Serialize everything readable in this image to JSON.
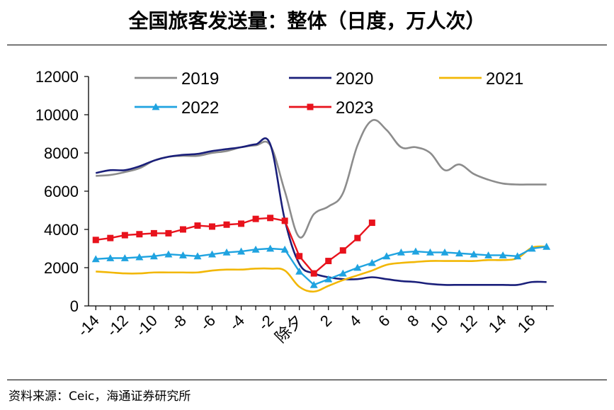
{
  "title": "全国旅客发送量：整体（日度，万人次）",
  "source": "资料来源：Ceic，海通证券研究所",
  "chart_data": {
    "type": "line",
    "xlabel": "",
    "ylabel": "",
    "ylim": [
      0,
      12000
    ],
    "yticks": [
      "0",
      "2000",
      "4000",
      "6000",
      "8000",
      "10000",
      "12000"
    ],
    "xticks": [
      "-14",
      "-12",
      "-10",
      "-8",
      "-6",
      "-4",
      "-2",
      "除夕",
      "2",
      "4",
      "6",
      "8",
      "10",
      "12",
      "14",
      "16"
    ],
    "grid": false,
    "legend_position": "top",
    "series": [
      {
        "name": "2019",
        "color": "#8c8c8c",
        "marker": "none",
        "x": [
          -14,
          -13,
          -12,
          -11,
          -10,
          -9,
          -8,
          -7,
          -6,
          -5,
          -4,
          -3,
          -2,
          -1,
          0,
          1,
          2,
          3,
          4,
          5,
          6,
          7,
          8,
          9,
          10,
          11,
          12,
          13,
          14,
          15,
          16,
          17
        ],
        "y": [
          6800,
          6850,
          7000,
          7200,
          7600,
          7800,
          7850,
          7850,
          8000,
          8100,
          8300,
          8400,
          8400,
          6000,
          3600,
          4800,
          5200,
          5900,
          8400,
          9700,
          9200,
          8300,
          8300,
          8000,
          7100,
          7400,
          6900,
          6600,
          6400,
          6350,
          6350,
          6350
        ]
      },
      {
        "name": "2020",
        "color": "#1a1f7a",
        "marker": "none",
        "x": [
          -14,
          -13,
          -12,
          -11,
          -10,
          -9,
          -8,
          -7,
          -6,
          -5,
          -4,
          -3,
          -2,
          -1,
          0,
          1,
          2,
          3,
          4,
          5,
          6,
          7,
          8,
          9,
          10,
          11,
          12,
          13,
          14,
          15,
          16,
          17
        ],
        "y": [
          6950,
          7100,
          7100,
          7300,
          7600,
          7800,
          7900,
          7950,
          8100,
          8200,
          8300,
          8450,
          8450,
          4500,
          2200,
          1700,
          1500,
          1400,
          1400,
          1500,
          1400,
          1300,
          1250,
          1150,
          1100,
          1100,
          1100,
          1100,
          1100,
          1100,
          1250,
          1250
        ]
      },
      {
        "name": "2021",
        "color": "#f2b705",
        "marker": "none",
        "x": [
          -14,
          -13,
          -12,
          -11,
          -10,
          -9,
          -8,
          -7,
          -6,
          -5,
          -4,
          -3,
          -2,
          -1,
          0,
          1,
          2,
          3,
          4,
          5,
          6,
          7,
          8,
          9,
          10,
          11,
          12,
          13,
          14,
          15,
          16,
          17
        ],
        "y": [
          1800,
          1750,
          1700,
          1700,
          1750,
          1750,
          1750,
          1750,
          1850,
          1900,
          1900,
          1950,
          1950,
          1850,
          1000,
          750,
          1050,
          1350,
          1600,
          1850,
          2150,
          2250,
          2300,
          2350,
          2350,
          2350,
          2350,
          2400,
          2400,
          2500,
          3050,
          3100
        ]
      },
      {
        "name": "2022",
        "color": "#1fa3e0",
        "marker": "triangle",
        "x": [
          -14,
          -13,
          -12,
          -11,
          -10,
          -9,
          -8,
          -7,
          -6,
          -5,
          -4,
          -3,
          -2,
          -1,
          0,
          1,
          2,
          3,
          4,
          5,
          6,
          7,
          8,
          9,
          10,
          11,
          12,
          13,
          14,
          15,
          16,
          17
        ],
        "y": [
          2450,
          2500,
          2500,
          2550,
          2600,
          2700,
          2650,
          2600,
          2700,
          2800,
          2850,
          2950,
          3000,
          2950,
          1800,
          1100,
          1400,
          1700,
          2000,
          2250,
          2600,
          2800,
          2850,
          2800,
          2800,
          2750,
          2700,
          2650,
          2650,
          2600,
          3000,
          3100
        ]
      },
      {
        "name": "2023",
        "color": "#e8121c",
        "marker": "square",
        "x": [
          -14,
          -13,
          -12,
          -11,
          -10,
          -9,
          -8,
          -7,
          -6,
          -5,
          -4,
          -3,
          -2,
          -1,
          0,
          1,
          2,
          3,
          4,
          5
        ],
        "y": [
          3450,
          3550,
          3700,
          3750,
          3800,
          3800,
          4000,
          4200,
          4150,
          4250,
          4300,
          4550,
          4600,
          4450,
          2600,
          1700,
          2350,
          2900,
          3550,
          4350
        ]
      }
    ]
  }
}
